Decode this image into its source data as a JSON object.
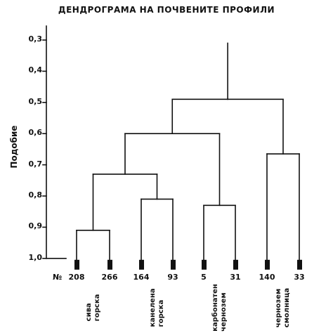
{
  "title": "ДЕНДРОГРАМА НА ПОЧВЕНИТЕ ПРОФИЛИ",
  "y_axis": {
    "label": "Подобие",
    "ticks": [
      "0,3",
      "0,4",
      "0,5",
      "0,6",
      "0,7",
      "0,8",
      "0,9",
      "1,0"
    ]
  },
  "n_prefix": "№",
  "leaves": [
    {
      "id": "208",
      "group": "siva"
    },
    {
      "id": "266",
      "group": "siva"
    },
    {
      "id": "164",
      "group": "kanelena"
    },
    {
      "id": "93",
      "group": "kanelena"
    },
    {
      "id": "5",
      "group": "karbonaten"
    },
    {
      "id": "31",
      "group": "karbonaten"
    },
    {
      "id": "140",
      "group": "smolnitsa"
    },
    {
      "id": "33",
      "group": "smolnitsa"
    }
  ],
  "groups": [
    {
      "key": "siva",
      "line1": "сива",
      "line2": "горска"
    },
    {
      "key": "kanelena",
      "line1": "канелена",
      "line2": "горска"
    },
    {
      "key": "karbonaten",
      "line1": "карбонатен",
      "line2": "чернозем"
    },
    {
      "key": "smolnitsa",
      "line1": "чернозем",
      "line2": "смолница"
    }
  ],
  "merges": [
    {
      "a": "208",
      "b": "266",
      "similarity": 0.91
    },
    {
      "a": "164",
      "b": "93",
      "similarity": 0.81
    },
    {
      "a": "5",
      "b": "31",
      "similarity": 0.83
    },
    {
      "a": "140",
      "b": "33",
      "similarity": 0.665
    },
    {
      "a": "208|266",
      "b": "164|93",
      "similarity": 0.73
    },
    {
      "a": "208|266|164|93",
      "b": "5|31",
      "similarity": 0.6
    },
    {
      "a": "208|266|164|93|5|31",
      "b": "140|33",
      "similarity": 0.49
    }
  ],
  "root_similarity": 0.31
}
